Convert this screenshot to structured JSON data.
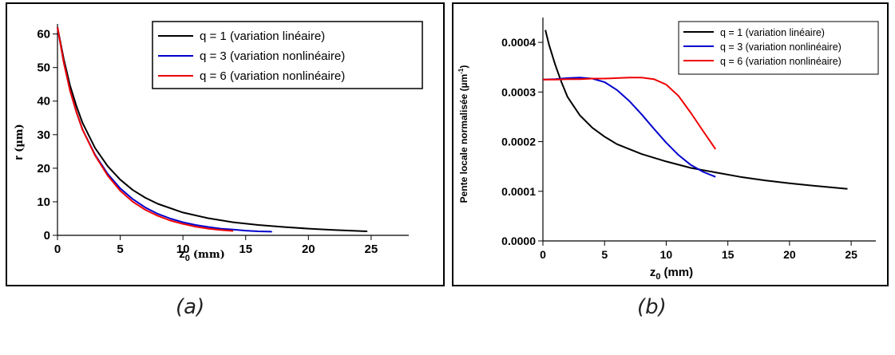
{
  "chart_data": [
    {
      "type": "line",
      "panel": "a",
      "caption": "(a)",
      "xlabel": "z",
      "xlabel_sub": "0",
      "xlabel_unit": "(mm)",
      "ylabel": "r",
      "ylabel_unit": "(µm)",
      "xlim": [
        0,
        28
      ],
      "ylim": [
        0,
        63
      ],
      "xticks": [
        0,
        5,
        10,
        15,
        20,
        25
      ],
      "yticks": [
        0,
        10,
        20,
        30,
        40,
        50,
        60
      ],
      "legend_position": "top-right",
      "grid": false,
      "series": [
        {
          "name": "q = 1 (variation linéaire)",
          "color": "#000000",
          "x": [
            0,
            0.5,
            1,
            1.5,
            2,
            3,
            4,
            5,
            6,
            7,
            8,
            10,
            12,
            14,
            16,
            18,
            20,
            22,
            24.7
          ],
          "y": [
            62,
            52.5,
            44.7,
            38.6,
            33.5,
            26.0,
            20.6,
            16.6,
            13.5,
            11.2,
            9.4,
            6.8,
            5.1,
            3.9,
            3.1,
            2.5,
            2.0,
            1.6,
            1.2
          ]
        },
        {
          "name": "q = 3 (variation nonlinéaire)",
          "color": "#0000cc",
          "x": [
            0,
            0.5,
            1,
            1.5,
            2,
            3,
            4,
            5,
            6,
            7,
            8,
            9,
            10,
            11,
            12,
            13,
            14,
            15,
            16,
            17.1
          ],
          "y": [
            62,
            51.5,
            43.2,
            36.8,
            31.5,
            24.0,
            18.3,
            14.0,
            10.8,
            8.3,
            6.4,
            5.0,
            3.9,
            3.1,
            2.5,
            2.0,
            1.7,
            1.4,
            1.2,
            1.1
          ]
        },
        {
          "name": "q = 6 (variation nonlinéaire)",
          "color": "#ee0000",
          "x": [
            0,
            0.5,
            1,
            1.5,
            2,
            3,
            4,
            5,
            6,
            7,
            8,
            9,
            10,
            11,
            12,
            13,
            14
          ],
          "y": [
            62,
            51.5,
            43.2,
            36.8,
            31.5,
            23.8,
            17.8,
            13.3,
            10.0,
            7.6,
            5.8,
            4.4,
            3.4,
            2.6,
            2.0,
            1.6,
            1.3
          ]
        }
      ]
    },
    {
      "type": "line",
      "panel": "b",
      "caption": "(b)",
      "xlabel": "z",
      "xlabel_sub": "0",
      "xlabel_unit": "(mm)",
      "ylabel": "Pente locale normalisée (µm",
      "ylabel_sup": "-1",
      "ylabel_end": ")",
      "xlim": [
        0,
        27
      ],
      "ylim": [
        0,
        0.00045
      ],
      "xticks": [
        0,
        5,
        10,
        15,
        20,
        25
      ],
      "yticks": [
        0,
        0.0001,
        0.0002,
        0.0003,
        0.0004
      ],
      "ytick_labels": [
        "0.0000",
        "0.0001",
        "0.0002",
        "0.0003",
        "0.0004"
      ],
      "legend_position": "top-right",
      "grid": false,
      "series": [
        {
          "name": "q = 1 (variation linéaire)",
          "color": "#000000",
          "x": [
            0.2,
            0.5,
            1,
            1.5,
            2,
            3,
            4,
            5,
            6,
            8,
            10,
            12,
            14,
            16,
            18,
            20,
            22,
            24.7
          ],
          "y": [
            0.000425,
            0.000395,
            0.000355,
            0.00032,
            0.00029,
            0.000253,
            0.000228,
            0.00021,
            0.000195,
            0.000175,
            0.00016,
            0.000147,
            0.000138,
            0.000129,
            0.000122,
            0.000116,
            0.000111,
            0.000105
          ]
        },
        {
          "name": "q = 3 (variation nonlinéaire)",
          "color": "#0000cc",
          "x": [
            0,
            1,
            2,
            3,
            4,
            5,
            6,
            7,
            8,
            9,
            10,
            11,
            12,
            13,
            14
          ],
          "y": [
            0.000325,
            0.000326,
            0.000328,
            0.000329,
            0.000327,
            0.00032,
            0.000304,
            0.000282,
            0.000255,
            0.000226,
            0.000198,
            0.000173,
            0.000153,
            0.000139,
            0.000129
          ]
        },
        {
          "name": "q = 6 (variation nonlinéaire)",
          "color": "#ee0000",
          "x": [
            0,
            1,
            2,
            3,
            4,
            5,
            6,
            7,
            8,
            9,
            10,
            11,
            12,
            13,
            14
          ],
          "y": [
            0.000325,
            0.000325,
            0.000326,
            0.000326,
            0.000327,
            0.000327,
            0.000328,
            0.000329,
            0.000329,
            0.000326,
            0.000315,
            0.000292,
            0.000258,
            0.000221,
            0.000185
          ]
        }
      ]
    }
  ]
}
